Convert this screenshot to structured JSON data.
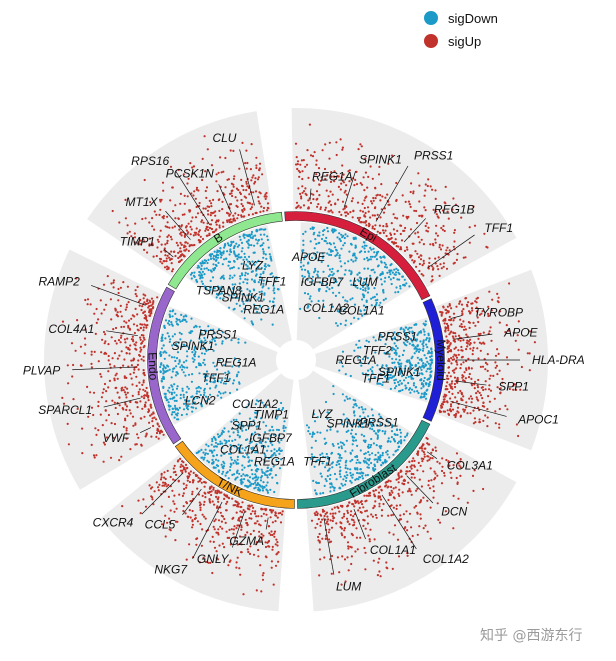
{
  "chart_data": {
    "type": "scatter",
    "title": "",
    "subtitle": "",
    "layout": "circular multi-group volcano",
    "grid": false,
    "legend_placement": "top-right",
    "legend": [
      {
        "name": "sigDown",
        "color": "#1b9ac8"
      },
      {
        "name": "sigUp",
        "color": "#c0322b"
      }
    ],
    "groups": [
      {
        "name": "Epi",
        "color": "#d61f3c",
        "start_deg": -5,
        "end_deg": 65,
        "up_genes": [
          "REG1A",
          "SPINK1",
          "PRSS1",
          "REG1B",
          "TFF1"
        ],
        "down_genes": [
          "APOE",
          "IGFBP7",
          "COL1A2",
          "LUM",
          "COL1A1"
        ]
      },
      {
        "name": "Myeloid",
        "color": "#1f1fd6",
        "start_deg": 65,
        "end_deg": 115,
        "up_genes": [
          "TYROBP",
          "APOE",
          "HLA-DRA",
          "SPP1",
          "APOC1"
        ],
        "down_genes": [
          "PRSS1",
          "TFF2",
          "REG1A",
          "SPINK1",
          "TFF1"
        ]
      },
      {
        "name": "Fibroblast",
        "color": "#2a9a8c",
        "start_deg": 115,
        "end_deg": 180,
        "up_genes": [
          "COL3A1",
          "DCN",
          "COL1A2",
          "COL1A1",
          "LUM"
        ],
        "down_genes": [
          "PRSS1",
          "SPINK1",
          "LYZ",
          "TFF1"
        ]
      },
      {
        "name": "T/NK",
        "color": "#f5a31a",
        "start_deg": 180,
        "end_deg": 235,
        "up_genes": [
          "GZMA",
          "GNLY",
          "NKG7",
          "CCL5",
          "CXCR4"
        ],
        "down_genes": [
          "REG1A",
          "IGFBP7",
          "TIMP1",
          "COL1A1",
          "SPP1",
          "COL1A2"
        ]
      },
      {
        "name": "Endo",
        "color": "#9966cc",
        "start_deg": 235,
        "end_deg": 300,
        "up_genes": [
          "VWF",
          "SPARCL1",
          "PLVAP",
          "COL4A1",
          "RAMP2"
        ],
        "down_genes": [
          "LCN2",
          "TFF1",
          "REG1A",
          "SPINK1",
          "PRSS1"
        ]
      },
      {
        "name": "B",
        "color": "#8fe88f",
        "start_deg": 300,
        "end_deg": 355,
        "up_genes": [
          "TIMP1",
          "MT1X",
          "RPS16",
          "PCSK1N",
          "CLU"
        ],
        "down_genes": [
          "TSPAN8",
          "SPINK1",
          "REG1A",
          "LYZ",
          "TFF1"
        ]
      }
    ]
  },
  "watermark": "知乎 @西游东行"
}
